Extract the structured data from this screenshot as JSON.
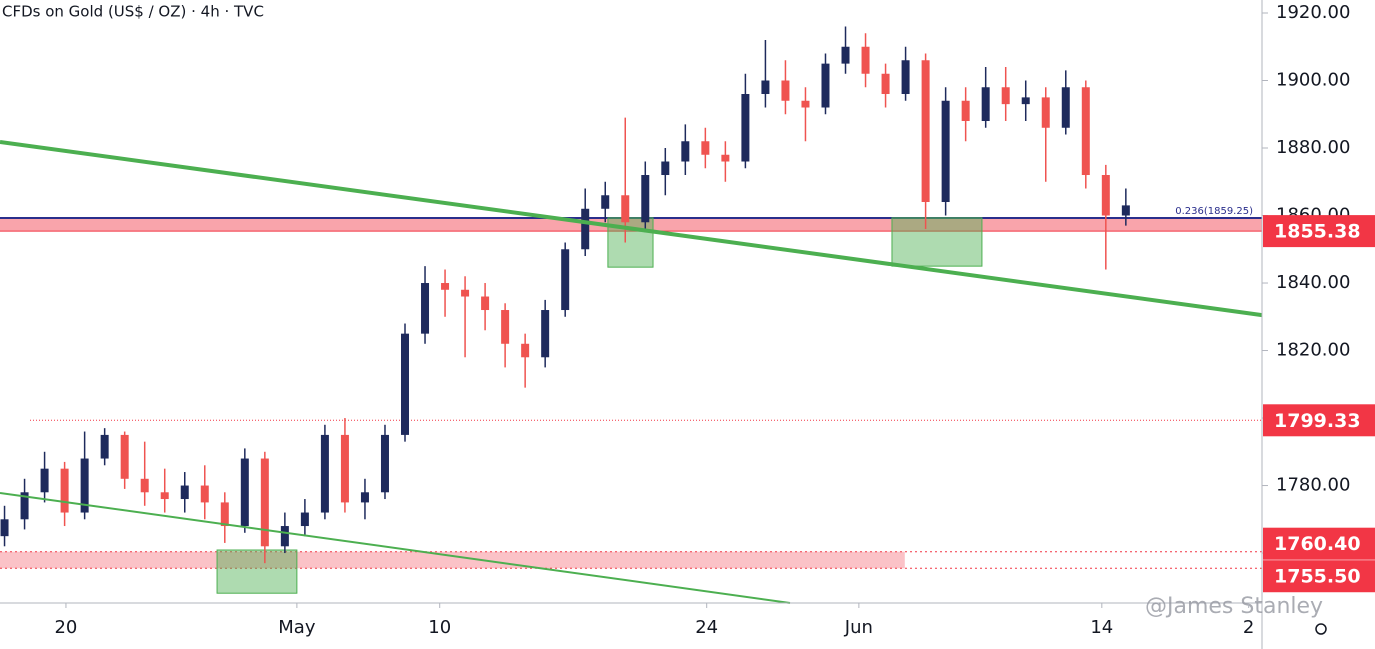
{
  "chart_data": {
    "type": "candlestick",
    "title": "CFDs on Gold (US$ / OZ) · 4h · TVC",
    "watermark": "@James Stanley",
    "up_color": "#1e2a5c",
    "down_color": "#ef5350",
    "xlim": [
      -2.47,
      44.8
    ],
    "ylim": [
      1745.2,
      1923.85
    ],
    "xticks": [
      {
        "value": 0,
        "label": "20"
      },
      {
        "value": 8.65,
        "label": "May"
      },
      {
        "value": 14.0,
        "label": "10"
      },
      {
        "value": 24.0,
        "label": "24"
      },
      {
        "value": 29.7,
        "label": "Jun"
      },
      {
        "value": 38.8,
        "label": "14"
      },
      {
        "value": 44.3,
        "label": "2"
      }
    ],
    "yticks": [
      {
        "value": 1760,
        "label": "1760.00"
      },
      {
        "value": 1780,
        "label": "1780.00"
      },
      {
        "value": 1800,
        "label": "1800.00"
      },
      {
        "value": 1820,
        "label": "1820.00"
      },
      {
        "value": 1840,
        "label": "1840.00"
      },
      {
        "value": 1860,
        "label": "1860.00"
      },
      {
        "value": 1880,
        "label": "1880.00"
      },
      {
        "value": 1900,
        "label": "1900.00"
      },
      {
        "value": 1920,
        "label": "1920.00"
      }
    ],
    "x": [
      -2.3,
      -1.55,
      -0.8,
      -0.05,
      0.7,
      1.45,
      2.2,
      2.95,
      3.7,
      4.45,
      5.2,
      5.95,
      6.7,
      7.45,
      8.2,
      8.95,
      9.7,
      10.45,
      11.2,
      11.95,
      12.7,
      13.45,
      14.2,
      14.95,
      15.7,
      16.45,
      17.2,
      17.95,
      18.7,
      19.45,
      20.2,
      20.95,
      21.7,
      22.45,
      23.2,
      23.95,
      24.7,
      25.45,
      26.2,
      26.95,
      27.7,
      28.45,
      29.2,
      29.95,
      30.7,
      31.45,
      32.2,
      32.95,
      33.7,
      34.45,
      35.2,
      35.95,
      36.7,
      37.45,
      38.2,
      38.95,
      39.7
    ],
    "open": [
      1765,
      1770,
      1778,
      1785,
      1772,
      1788,
      1795,
      1782,
      1778,
      1776,
      1780,
      1775,
      1768,
      1788,
      1762,
      1768,
      1772,
      1795,
      1775,
      1778,
      1795,
      1825,
      1840,
      1838,
      1836,
      1832,
      1822,
      1818,
      1832,
      1850,
      1862,
      1866,
      1858,
      1872,
      1876,
      1882,
      1878,
      1876,
      1896,
      1900,
      1894,
      1892,
      1905,
      1910,
      1902,
      1896,
      1906,
      1864,
      1894,
      1888,
      1898,
      1893,
      1895,
      1886,
      1898,
      1872,
      1860
    ],
    "high": [
      1774,
      1782,
      1790,
      1787,
      1796,
      1797,
      1796,
      1793,
      1785,
      1784,
      1786,
      1778,
      1791,
      1790,
      1772,
      1776,
      1798,
      1800,
      1782,
      1798,
      1828,
      1845,
      1844,
      1842,
      1840,
      1834,
      1825,
      1835,
      1852,
      1868,
      1870,
      1889,
      1876,
      1880,
      1887,
      1886,
      1882,
      1902,
      1912,
      1906,
      1898,
      1908,
      1916,
      1914,
      1905,
      1910,
      1908,
      1898,
      1898,
      1904,
      1904,
      1900,
      1898,
      1903,
      1900,
      1875,
      1868
    ],
    "low": [
      1762,
      1767,
      1775,
      1768,
      1770,
      1786,
      1779,
      1774,
      1772,
      1772,
      1770,
      1763,
      1766,
      1757,
      1760,
      1765,
      1770,
      1772,
      1770,
      1776,
      1793,
      1822,
      1830,
      1818,
      1826,
      1815,
      1809,
      1815,
      1830,
      1848,
      1858,
      1852,
      1855,
      1866,
      1872,
      1874,
      1870,
      1874,
      1892,
      1890,
      1882,
      1890,
      1902,
      1898,
      1892,
      1894,
      1856,
      1860,
      1882,
      1886,
      1888,
      1888,
      1870,
      1884,
      1868,
      1844,
      1857
    ],
    "close": [
      1770,
      1778,
      1785,
      1772,
      1788,
      1795,
      1782,
      1778,
      1776,
      1780,
      1775,
      1768,
      1788,
      1762,
      1768,
      1772,
      1795,
      1775,
      1778,
      1795,
      1825,
      1840,
      1838,
      1836,
      1832,
      1822,
      1818,
      1832,
      1850,
      1862,
      1866,
      1858,
      1872,
      1876,
      1882,
      1878,
      1876,
      1896,
      1900,
      1894,
      1892,
      1905,
      1910,
      1902,
      1896,
      1906,
      1864,
      1894,
      1888,
      1898,
      1893,
      1895,
      1886,
      1898,
      1872,
      1860,
      1863
    ],
    "levels": [
      1855.38,
      1799.33,
      {
        "value": 1760.4,
        "label": "1760.40"
      },
      {
        "value": 1755.5,
        "label": "1755.50"
      }
    ],
    "level_color": "#f23645",
    "fib_level": {
      "value": 1859.25,
      "label": "0.236(1859.25)"
    },
    "fib_color": "#2a2e8c",
    "lower_band_end": 31.42,
    "trendlines": [
      {
        "x": [
          -2.47,
          44.8
        ],
        "y": [
          1881.8,
          1830.5
        ],
        "width": 4
      },
      {
        "x": [
          -2.47,
          27.12
        ],
        "y": [
          1777.8,
          1745.2
        ],
        "width": 2
      }
    ],
    "trend_color": "#4caf50",
    "boxes": [
      {
        "x": [
          20.3,
          21.99
        ],
        "y": [
          1844.7,
          1859.3
        ]
      },
      {
        "x": [
          30.94,
          34.31
        ],
        "y": [
          1845.0,
          1859.3
        ]
      },
      {
        "x": [
          5.66,
          8.65
        ],
        "y": [
          1748.1,
          1760.9
        ]
      }
    ]
  }
}
